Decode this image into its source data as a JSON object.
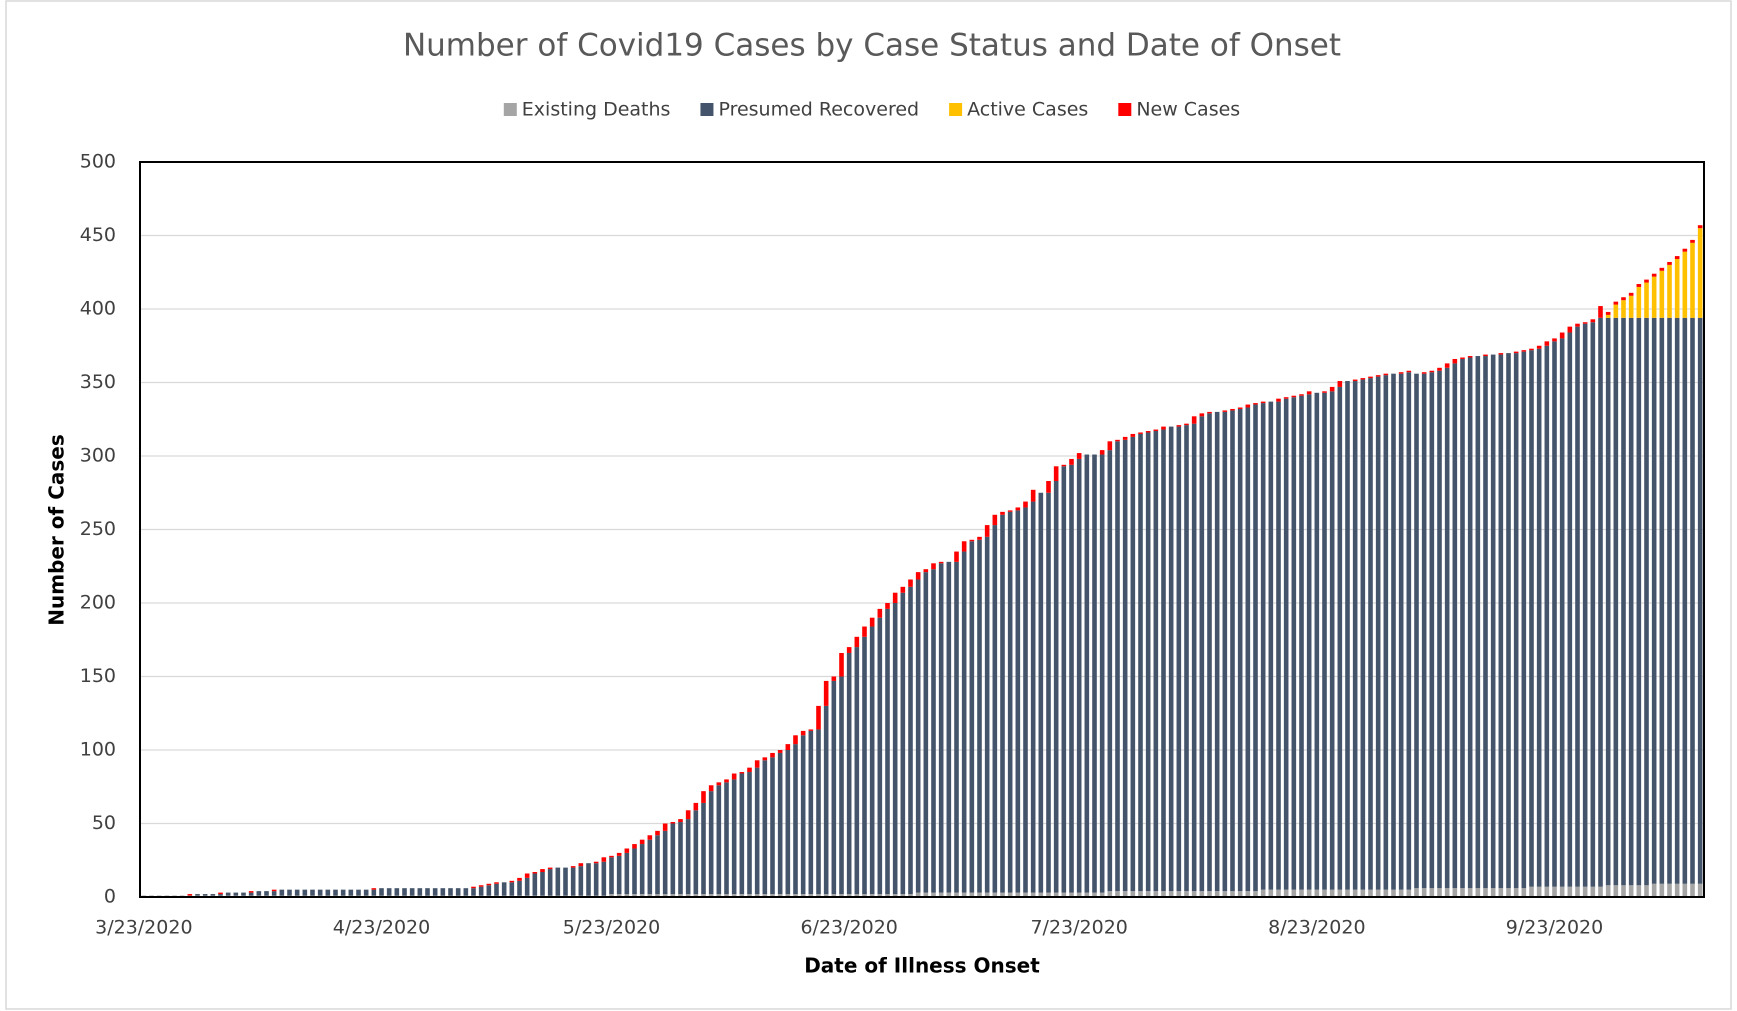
{
  "chart_data": {
    "type": "bar",
    "stacked": true,
    "title": "Number of Covid19 Cases by Case Status and Date of Onset",
    "xlabel": "Date of Illness Onset",
    "ylabel": "Number of Cases",
    "ylim": [
      0,
      500
    ],
    "yticks": [
      0,
      50,
      100,
      150,
      200,
      250,
      300,
      350,
      400,
      450,
      500
    ],
    "grid": true,
    "legend": "top",
    "categories": [
      "3/23/2020",
      null,
      null,
      null,
      null,
      null,
      null,
      null,
      null,
      null,
      null,
      null,
      null,
      null,
      null,
      null,
      null,
      null,
      null,
      null,
      null,
      null,
      null,
      null,
      null,
      null,
      null,
      null,
      null,
      null,
      null,
      "4/23/2020",
      null,
      null,
      null,
      null,
      null,
      null,
      null,
      null,
      null,
      null,
      null,
      null,
      null,
      null,
      null,
      null,
      null,
      null,
      null,
      null,
      null,
      null,
      null,
      null,
      null,
      null,
      null,
      null,
      null,
      "5/23/2020",
      null,
      null,
      null,
      null,
      null,
      null,
      null,
      null,
      null,
      null,
      null,
      null,
      null,
      null,
      null,
      null,
      null,
      null,
      null,
      null,
      null,
      null,
      null,
      null,
      null,
      null,
      null,
      null,
      null,
      null,
      "6/23/2020",
      null,
      null,
      null,
      null,
      null,
      null,
      null,
      null,
      null,
      null,
      null,
      null,
      null,
      null,
      null,
      null,
      null,
      null,
      null,
      null,
      null,
      null,
      null,
      null,
      null,
      null,
      null,
      null,
      null,
      "7/23/2020",
      null,
      null,
      null,
      null,
      null,
      null,
      null,
      null,
      null,
      null,
      null,
      null,
      null,
      null,
      null,
      null,
      null,
      null,
      null,
      null,
      null,
      null,
      null,
      null,
      null,
      null,
      null,
      null,
      null,
      null,
      "8/23/2020",
      null,
      null,
      null,
      null,
      null,
      null,
      null,
      null,
      null,
      null,
      null,
      null,
      null,
      null,
      null,
      null,
      null,
      null,
      null,
      null,
      null,
      null,
      null,
      null,
      null,
      null,
      null,
      null,
      null,
      null,
      "9/23/2020",
      null,
      null,
      null,
      null,
      null,
      null,
      null,
      null,
      null,
      null,
      null,
      null,
      null,
      null,
      null,
      null,
      null,
      null,
      null
    ],
    "series": [
      {
        "name": "Existing Deaths",
        "color": "#a5a5a5",
        "values": [
          1,
          1,
          1,
          1,
          1,
          1,
          1,
          1,
          1,
          1,
          1,
          1,
          1,
          1,
          1,
          1,
          1,
          1,
          1,
          1,
          1,
          1,
          1,
          1,
          1,
          1,
          1,
          1,
          1,
          1,
          1,
          1,
          1,
          1,
          1,
          1,
          1,
          1,
          1,
          1,
          1,
          1,
          1,
          1,
          1,
          1,
          1,
          1,
          1,
          1,
          1,
          1,
          1,
          1,
          1,
          1,
          1,
          1,
          1,
          1,
          1,
          2,
          2,
          2,
          2,
          2,
          2,
          2,
          2,
          2,
          2,
          2,
          2,
          2,
          2,
          2,
          2,
          2,
          2,
          2,
          2,
          2,
          2,
          2,
          2,
          2,
          2,
          2,
          2,
          2,
          2,
          2,
          2,
          2,
          2,
          2,
          2,
          2,
          2,
          2,
          2,
          3,
          3,
          3,
          3,
          3,
          3,
          3,
          3,
          3,
          3,
          3,
          3,
          3,
          3,
          3,
          3,
          3,
          3,
          3,
          3,
          3,
          3,
          3,
          3,
          3,
          4,
          4,
          4,
          4,
          4,
          4,
          4,
          4,
          4,
          4,
          4,
          4,
          4,
          4,
          4,
          4,
          4,
          4,
          4,
          4,
          5,
          5,
          5,
          5,
          5,
          5,
          5,
          5,
          5,
          5,
          5,
          5,
          5,
          5,
          5,
          5,
          5,
          5,
          5,
          5,
          6,
          6,
          6,
          6,
          6,
          6,
          6,
          6,
          6,
          6,
          6,
          6,
          6,
          6,
          6,
          7,
          7,
          7,
          7,
          7,
          7,
          7,
          7,
          7,
          7,
          8,
          8,
          8,
          8,
          8,
          8,
          9,
          9,
          9,
          9,
          9,
          9,
          9
        ]
      },
      {
        "name": "Presumed Recovered",
        "color": "#44546a",
        "values": [
          0,
          0,
          0,
          0,
          0,
          0,
          0,
          1,
          1,
          1,
          1,
          2,
          2,
          2,
          2,
          3,
          3,
          3,
          4,
          4,
          4,
          4,
          4,
          4,
          4,
          4,
          4,
          4,
          4,
          4,
          4,
          5,
          5,
          5,
          5,
          5,
          5,
          5,
          5,
          5,
          5,
          5,
          5,
          5,
          6,
          7,
          8,
          9,
          9,
          10,
          12,
          15,
          16,
          18,
          19,
          19,
          19,
          20,
          22,
          22,
          23,
          25,
          26,
          28,
          31,
          34,
          37,
          40,
          43,
          48,
          49,
          51,
          57,
          62,
          70,
          74,
          76,
          78,
          82,
          83,
          86,
          91,
          93,
          96,
          98,
          102,
          108,
          111,
          112,
          128,
          145,
          148,
          164,
          168,
          175,
          182,
          188,
          194,
          198,
          205,
          209,
          213,
          218,
          220,
          224,
          225,
          225,
          232,
          239,
          240,
          242,
          250,
          257,
          259,
          260,
          262,
          266,
          272,
          272,
          280,
          290,
          291,
          295,
          298,
          298,
          298,
          300,
          306,
          307,
          309,
          311,
          312,
          313,
          314,
          316,
          316,
          317,
          318,
          323,
          325,
          326,
          326,
          327,
          328,
          329,
          331,
          331,
          332,
          332,
          334,
          335,
          336,
          337,
          338,
          338,
          339,
          342,
          346,
          346,
          347,
          348,
          349,
          350,
          351,
          351,
          352,
          350,
          350,
          351,
          352,
          354,
          357,
          360,
          361,
          362,
          362,
          363,
          363,
          364,
          364,
          365,
          365,
          366,
          368,
          371,
          373,
          377,
          381,
          383,
          384,
          387,
          386,
          386,
          386,
          386,
          386,
          386,
          385,
          385,
          385,
          385,
          385,
          385,
          385
        ]
      },
      {
        "name": "Active Cases",
        "color": "#ffc000",
        "values": [
          0,
          0,
          0,
          0,
          0,
          0,
          0,
          0,
          0,
          0,
          0,
          0,
          0,
          0,
          0,
          0,
          0,
          0,
          0,
          0,
          0,
          0,
          0,
          0,
          0,
          0,
          0,
          0,
          0,
          0,
          0,
          0,
          0,
          0,
          0,
          0,
          0,
          0,
          0,
          0,
          0,
          0,
          0,
          0,
          0,
          0,
          0,
          0,
          0,
          0,
          0,
          0,
          0,
          0,
          0,
          0,
          0,
          0,
          0,
          0,
          0,
          0,
          0,
          0,
          0,
          0,
          0,
          0,
          0,
          0,
          0,
          0,
          0,
          0,
          0,
          0,
          0,
          0,
          0,
          0,
          0,
          0,
          0,
          0,
          0,
          0,
          0,
          0,
          0,
          0,
          0,
          0,
          0,
          0,
          0,
          0,
          0,
          0,
          0,
          0,
          0,
          0,
          0,
          0,
          0,
          0,
          0,
          0,
          0,
          0,
          0,
          0,
          0,
          0,
          0,
          0,
          0,
          0,
          0,
          0,
          0,
          0,
          0,
          0,
          0,
          0,
          0,
          0,
          0,
          0,
          0,
          0,
          0,
          0,
          0,
          0,
          0,
          0,
          0,
          0,
          0,
          0,
          0,
          0,
          0,
          0,
          0,
          0,
          0,
          0,
          0,
          0,
          0,
          0,
          0,
          0,
          0,
          0,
          0,
          0,
          0,
          0,
          0,
          0,
          0,
          0,
          0,
          0,
          0,
          0,
          0,
          0,
          0,
          0,
          0,
          0,
          0,
          0,
          0,
          0,
          0,
          0,
          0,
          0,
          0,
          0,
          0,
          0,
          0,
          0,
          0,
          2,
          9,
          12,
          15,
          21,
          24,
          28,
          32,
          36,
          40,
          45,
          51,
          61
        ]
      },
      {
        "name": "New Cases",
        "color": "#ff0000",
        "values": [
          0,
          0,
          0,
          0,
          0,
          0,
          1,
          0,
          0,
          0,
          1,
          0,
          0,
          0,
          1,
          0,
          0,
          1,
          0,
          0,
          0,
          0,
          0,
          0,
          0,
          0,
          0,
          0,
          0,
          0,
          1,
          0,
          0,
          0,
          0,
          0,
          0,
          0,
          0,
          0,
          0,
          0,
          0,
          1,
          1,
          1,
          1,
          0,
          1,
          2,
          3,
          1,
          2,
          1,
          0,
          0,
          1,
          2,
          0,
          1,
          3,
          1,
          2,
          3,
          3,
          3,
          3,
          3,
          5,
          1,
          2,
          6,
          5,
          8,
          4,
          2,
          2,
          4,
          1,
          3,
          5,
          2,
          3,
          2,
          4,
          6,
          3,
          1,
          16,
          17,
          3,
          16,
          4,
          7,
          7,
          6,
          6,
          4,
          7,
          4,
          5,
          5,
          2,
          4,
          1,
          0,
          7,
          7,
          1,
          2,
          8,
          7,
          2,
          1,
          2,
          4,
          8,
          0,
          8,
          10,
          1,
          4,
          4,
          0,
          0,
          3,
          6,
          1,
          2,
          2,
          1,
          1,
          1,
          2,
          0,
          1,
          1,
          5,
          2,
          1,
          0,
          1,
          1,
          1,
          2,
          1,
          1,
          0,
          2,
          1,
          1,
          1,
          2,
          0,
          1,
          3,
          4,
          0,
          1,
          1,
          1,
          1,
          1,
          0,
          1,
          1,
          0,
          1,
          1,
          2,
          3,
          3,
          1,
          1,
          0,
          1,
          0,
          1,
          0,
          1,
          1,
          1,
          2,
          3,
          2,
          4,
          4,
          2,
          1,
          2,
          8,
          2,
          2,
          2,
          2,
          2,
          2,
          2,
          2,
          2,
          2,
          2,
          2,
          2
        ]
      }
    ]
  }
}
